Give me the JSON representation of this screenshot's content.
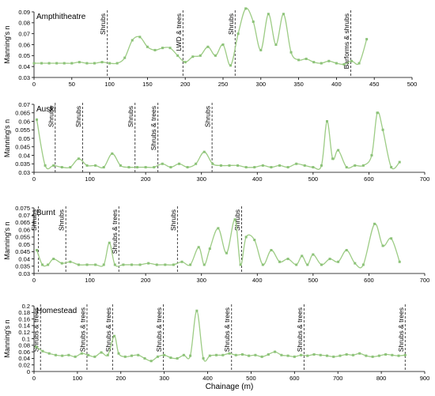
{
  "figure": {
    "shared_xlabel": "Chainage (m)"
  },
  "style": {
    "series_color": "#9dcc85",
    "marker_color": "#8cc278",
    "axis_color": "#000000",
    "marker_line_color": "#333333"
  },
  "chart_data": [
    {
      "type": "line",
      "title": "Ampthitheatre",
      "ylabel": "Manning's n",
      "xlim": [
        0,
        500
      ],
      "ylim": [
        0.03,
        0.09
      ],
      "x_ticks": [
        "0",
        "50",
        "100",
        "150",
        "200",
        "250",
        "300",
        "350",
        "400",
        "450",
        "500"
      ],
      "y_ticks": [
        "0.03",
        "0.04",
        "0.05",
        "0.06",
        "0.07",
        "0.08",
        "0.09"
      ],
      "markers": [
        {
          "x": 97,
          "label": "Shrubs"
        },
        {
          "x": 197,
          "label": "LWD & trees"
        },
        {
          "x": 266,
          "label": "Shrubs"
        },
        {
          "x": 419,
          "label": "Barforms & shrubs"
        }
      ],
      "x": [
        0,
        10,
        20,
        30,
        40,
        50,
        60,
        70,
        80,
        90,
        100,
        110,
        120,
        130,
        140,
        150,
        160,
        170,
        180,
        190,
        200,
        210,
        220,
        230,
        240,
        250,
        260,
        270,
        280,
        290,
        300,
        310,
        320,
        330,
        340,
        350,
        360,
        370,
        380,
        390,
        400,
        410,
        420,
        430,
        440
      ],
      "values": [
        0.043,
        0.043,
        0.043,
        0.043,
        0.043,
        0.043,
        0.044,
        0.043,
        0.043,
        0.044,
        0.043,
        0.043,
        0.048,
        0.064,
        0.067,
        0.058,
        0.055,
        0.057,
        0.057,
        0.05,
        0.044,
        0.049,
        0.05,
        0.058,
        0.05,
        0.06,
        0.041,
        0.07,
        0.093,
        0.081,
        0.055,
        0.088,
        0.06,
        0.088,
        0.053,
        0.046,
        0.047,
        0.044,
        0.043,
        0.045,
        0.043,
        0.042,
        0.045,
        0.043,
        0.065
      ]
    },
    {
      "type": "line",
      "title": "Auski",
      "ylabel": "Manning's n",
      "xlim": [
        0,
        700
      ],
      "ylim": [
        0.03,
        0.07
      ],
      "x_ticks": [
        "0",
        "100",
        "200",
        "300",
        "400",
        "500",
        "600",
        "700"
      ],
      "y_ticks": [
        "0.03",
        "0.035",
        "0.04",
        "0.045",
        "0.05",
        "0.055",
        "0.06",
        "0.065",
        "0.07"
      ],
      "markers": [
        {
          "x": 38,
          "label": "Shrubs"
        },
        {
          "x": 87,
          "label": "Shrubs"
        },
        {
          "x": 181,
          "label": "Shrubs"
        },
        {
          "x": 222,
          "label": "Shrubs & trees"
        },
        {
          "x": 319,
          "label": "Shrubs"
        }
      ],
      "x": [
        5,
        20,
        35,
        50,
        65,
        80,
        95,
        110,
        125,
        140,
        155,
        170,
        185,
        200,
        215,
        230,
        245,
        260,
        275,
        290,
        305,
        320,
        335,
        350,
        365,
        380,
        395,
        410,
        425,
        440,
        455,
        470,
        485,
        500,
        515,
        525,
        535,
        545,
        560,
        575,
        590,
        605,
        615,
        625,
        640,
        655
      ],
      "values": [
        0.061,
        0.034,
        0.034,
        0.033,
        0.033,
        0.038,
        0.034,
        0.034,
        0.033,
        0.041,
        0.034,
        0.033,
        0.033,
        0.033,
        0.033,
        0.035,
        0.033,
        0.035,
        0.033,
        0.035,
        0.042,
        0.035,
        0.034,
        0.034,
        0.034,
        0.033,
        0.033,
        0.034,
        0.033,
        0.034,
        0.033,
        0.035,
        0.034,
        0.033,
        0.034,
        0.06,
        0.038,
        0.043,
        0.033,
        0.034,
        0.034,
        0.04,
        0.065,
        0.055,
        0.033,
        0.036
      ]
    },
    {
      "type": "line",
      "title": "Burnt",
      "ylabel": "Manning's n",
      "xlim": [
        0,
        700
      ],
      "ylim": [
        0.03,
        0.075
      ],
      "x_ticks": [
        "0",
        "100",
        "200",
        "300",
        "400",
        "500",
        "600",
        "700"
      ],
      "y_ticks": [
        "0.03",
        "0.035",
        "0.04",
        "0.045",
        "0.05",
        "0.055",
        "0.06",
        "0.065",
        "0.07",
        "0.075"
      ],
      "markers": [
        {
          "x": 8,
          "label": "Shrubs"
        },
        {
          "x": 57,
          "label": "Shrubs"
        },
        {
          "x": 152,
          "label": "Shrubs & trees"
        },
        {
          "x": 257,
          "label": "Shrubs"
        },
        {
          "x": 372,
          "label": "Shrubs"
        }
      ],
      "x": [
        5,
        15,
        25,
        35,
        50,
        65,
        80,
        95,
        110,
        125,
        135,
        145,
        160,
        175,
        190,
        205,
        220,
        235,
        250,
        265,
        280,
        295,
        305,
        315,
        330,
        345,
        360,
        370,
        380,
        395,
        410,
        425,
        440,
        455,
        470,
        480,
        490,
        500,
        515,
        530,
        545,
        560,
        575,
        590,
        610,
        625,
        640,
        655
      ],
      "values": [
        0.046,
        0.036,
        0.036,
        0.04,
        0.037,
        0.038,
        0.036,
        0.036,
        0.036,
        0.036,
        0.051,
        0.036,
        0.036,
        0.036,
        0.036,
        0.037,
        0.036,
        0.036,
        0.036,
        0.038,
        0.036,
        0.048,
        0.036,
        0.047,
        0.061,
        0.044,
        0.067,
        0.036,
        0.055,
        0.053,
        0.036,
        0.046,
        0.038,
        0.04,
        0.036,
        0.042,
        0.036,
        0.043,
        0.036,
        0.04,
        0.038,
        0.046,
        0.037,
        0.036,
        0.064,
        0.049,
        0.054,
        0.038
      ]
    },
    {
      "type": "line",
      "title": "Homestead",
      "ylabel": "Manning's n",
      "xlabel": "Chainage (m)",
      "xlim": [
        0,
        900
      ],
      "ylim": [
        0,
        0.2
      ],
      "x_ticks": [
        "0",
        "100",
        "200",
        "300",
        "400",
        "500",
        "600",
        "700",
        "800",
        "900"
      ],
      "y_ticks": [
        "0",
        "0.02",
        "0.04",
        "0.06",
        "0.08",
        "0.1",
        "0.12",
        "0.14",
        "0.16",
        "0.18",
        "0.2"
      ],
      "markers": [
        {
          "x": 15,
          "label": "Shrubs & trees"
        },
        {
          "x": 122,
          "label": "Shrubs & trees"
        },
        {
          "x": 181,
          "label": "Shrubs & trees"
        },
        {
          "x": 298,
          "label": "Shrubs & trees"
        },
        {
          "x": 455,
          "label": "Shrubs & trees"
        },
        {
          "x": 622,
          "label": "Shrubs & trees"
        },
        {
          "x": 855,
          "label": "Shrubs & trees"
        }
      ],
      "x": [
        5,
        20,
        35,
        50,
        65,
        80,
        95,
        110,
        125,
        140,
        155,
        170,
        185,
        195,
        210,
        225,
        240,
        255,
        270,
        285,
        300,
        315,
        330,
        345,
        360,
        375,
        390,
        405,
        420,
        435,
        450,
        465,
        480,
        495,
        510,
        525,
        540,
        555,
        570,
        585,
        600,
        615,
        630,
        645,
        660,
        675,
        690,
        705,
        720,
        735,
        750,
        765,
        780,
        795,
        810,
        825,
        840,
        855
      ],
      "values": [
        0.075,
        0.062,
        0.055,
        0.05,
        0.048,
        0.05,
        0.045,
        0.055,
        0.05,
        0.045,
        0.058,
        0.05,
        0.108,
        0.055,
        0.045,
        0.048,
        0.05,
        0.04,
        0.032,
        0.045,
        0.05,
        0.042,
        0.04,
        0.05,
        0.048,
        0.185,
        0.04,
        0.048,
        0.05,
        0.05,
        0.055,
        0.05,
        0.052,
        0.048,
        0.05,
        0.045,
        0.052,
        0.06,
        0.05,
        0.048,
        0.045,
        0.05,
        0.048,
        0.052,
        0.05,
        0.048,
        0.045,
        0.048,
        0.052,
        0.05,
        0.055,
        0.048,
        0.045,
        0.048,
        0.052,
        0.05,
        0.048,
        0.05
      ]
    }
  ]
}
